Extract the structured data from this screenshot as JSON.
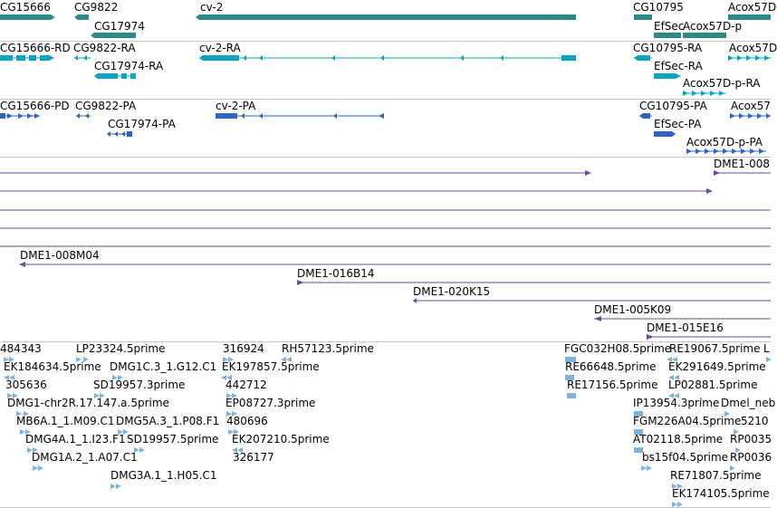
{
  "tracks": {
    "genes": {
      "color": "#2e8b84",
      "labels": [
        "CG15666",
        "CG9822",
        "cv-2",
        "CG17974",
        "CG10795",
        "Acox57D",
        "EfSec",
        "Acox57D-p"
      ]
    },
    "transcripts_ra": {
      "color": "#0aa3c2",
      "labels": [
        "CG15666-RD",
        "CG9822-RA",
        "cv-2-RA",
        "CG17974-RA",
        "CG10795-RA",
        "Acox57D",
        "EfSec-RA",
        "Acox57D-p-RA"
      ]
    },
    "proteins_pa": {
      "color": "#2f62c8",
      "labels": [
        "CG15666-PD",
        "CG9822-PA",
        "cv-2-PA",
        "CG17974-PA",
        "CG10795-PA",
        "Acox57",
        "EfSec-PA",
        "Acox57D-p-PA"
      ]
    },
    "bac_clones": {
      "color": "#6a4aa6",
      "labels": [
        "DME1-008",
        "DME1-008M04",
        "DME1-016B14",
        "DME1-020K15",
        "DME1-005K09",
        "DME1-015E16"
      ]
    },
    "ests": {
      "color": "#7fb2d8",
      "labels": [
        "484343",
        "LP23324.5prime",
        "316924",
        "RH57123.5prime",
        "FGC032H08.5prime",
        "RE19067.5prime",
        "L",
        "EK184634.5prime",
        "DMG1C.3_1.G12.C1",
        "EK197857.5prime",
        "RE66648.5prime",
        "EK291649.5prime",
        "305636",
        "SD19957.3prime",
        "442712",
        "RE17156.5prime",
        "LP02881.5prime",
        "DMG1-chr2R.17.147.a.5prime",
        "EP08727.3prime",
        "IP13954.3prime",
        "Dmel_neb",
        "MB6A.1_1.M09.C1",
        "DMG5A.3_1.P08.F1",
        "480696",
        "FGM226A04.5prime",
        "5210",
        "DMG4A.1_1.I23.F1",
        "SD19957.5prime",
        "EK207210.5prime",
        "AT02118.5prime",
        "RP0035",
        "DMG1A.2_1.A07.C1",
        "326177",
        "bs15f04.5prime",
        "RP0036",
        "DMG3A.1_1.H05.C1",
        "RE71807.5prime",
        "EK174105.5prime"
      ]
    }
  }
}
